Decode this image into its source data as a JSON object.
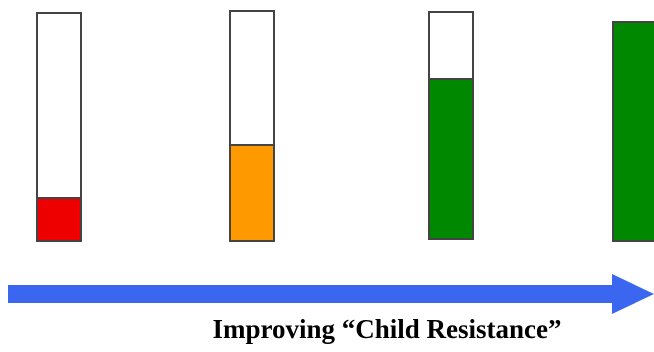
{
  "diagram": {
    "caption": "Improving “Child Resistance”",
    "arrow_color": "#3a66f0",
    "gauges": [
      {
        "level": 0.19,
        "color": "#ee0000"
      },
      {
        "level": 0.42,
        "color": "#ff9900"
      },
      {
        "level": 0.71,
        "color": "#008800"
      },
      {
        "level": 1.0,
        "color": "#008800"
      }
    ]
  }
}
